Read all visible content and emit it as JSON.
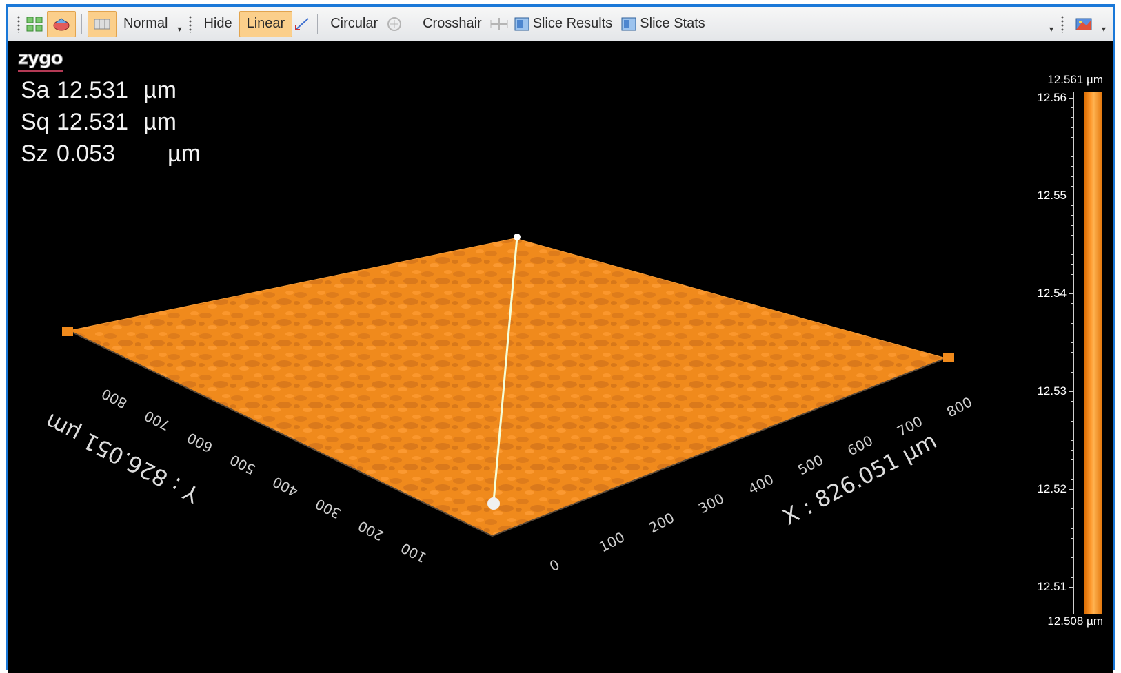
{
  "toolbar": {
    "view_mode": "Normal",
    "hide": "Hide",
    "linear": "Linear",
    "circular": "Circular",
    "crosshair": "Crosshair",
    "slice_results": "Slice Results",
    "slice_stats": "Slice Stats"
  },
  "logo": "zygo",
  "stats": [
    {
      "name": "Sa",
      "value": "12.531",
      "unit": "µm"
    },
    {
      "name": "Sq",
      "value": "12.531",
      "unit": "µm"
    },
    {
      "name": "Sz",
      "value": "0.053",
      "unit": "µm"
    }
  ],
  "color_scale": {
    "max_label": "12.561 µm",
    "min_label": "12.508 µm",
    "ticks": [
      "12.56",
      "12.55",
      "12.54",
      "12.53",
      "12.52",
      "12.51"
    ],
    "color": "#ff8c1a"
  },
  "plot": {
    "x_axis_label": "X : 826.051 µm",
    "y_axis_label": "Y : 826.051 µm",
    "x_ticks": [
      "0",
      "100",
      "200",
      "300",
      "400",
      "500",
      "600",
      "700",
      "800"
    ],
    "y_ticks": [
      "100",
      "200",
      "300",
      "400",
      "500",
      "600",
      "700",
      "800"
    ],
    "surface_color": "#f08a1c"
  }
}
